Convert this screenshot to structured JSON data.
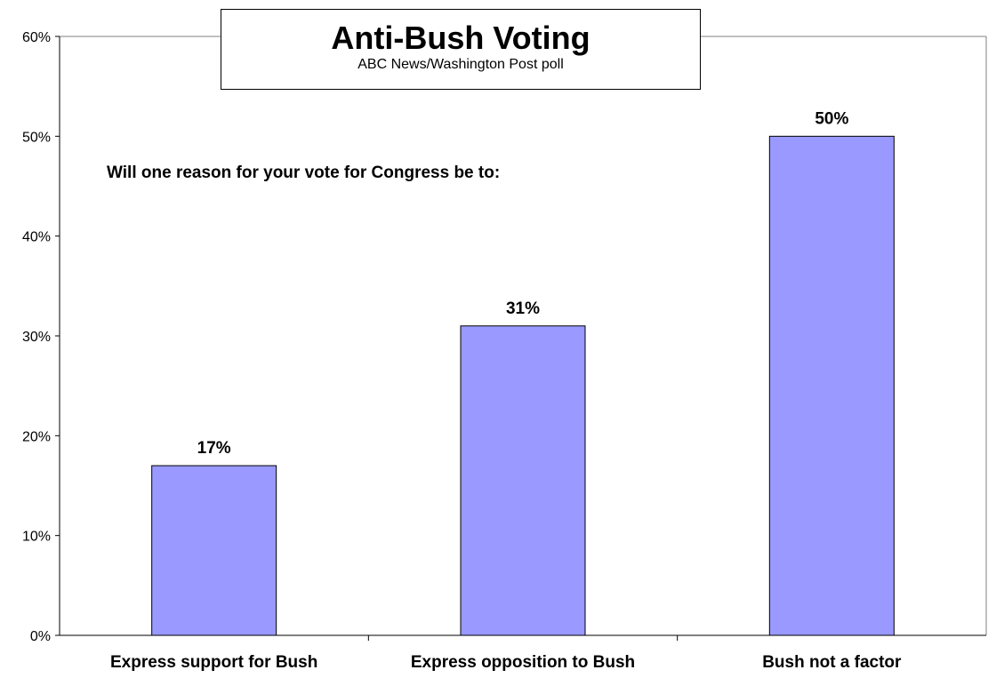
{
  "chart_data": {
    "type": "bar",
    "title": "Anti-Bush Voting",
    "subtitle": "ABC News/Washington Post poll",
    "annotation": "Will one reason for your vote for Congress be to:",
    "categories": [
      "Express support for Bush",
      "Express opposition to Bush",
      "Bush not a factor"
    ],
    "values": [
      17,
      31,
      50
    ],
    "data_labels": [
      "17%",
      "31%",
      "50%"
    ],
    "ylim": [
      0,
      60
    ],
    "yticks": [
      0,
      10,
      20,
      30,
      40,
      50,
      60
    ],
    "ytick_labels": [
      "0%",
      "10%",
      "20%",
      "30%",
      "40%",
      "50%",
      "60%"
    ],
    "xlabel": "",
    "ylabel": "",
    "grid": false,
    "legend": "none",
    "bar_color": "#9999FF",
    "bar_edge_color": "#000000"
  }
}
